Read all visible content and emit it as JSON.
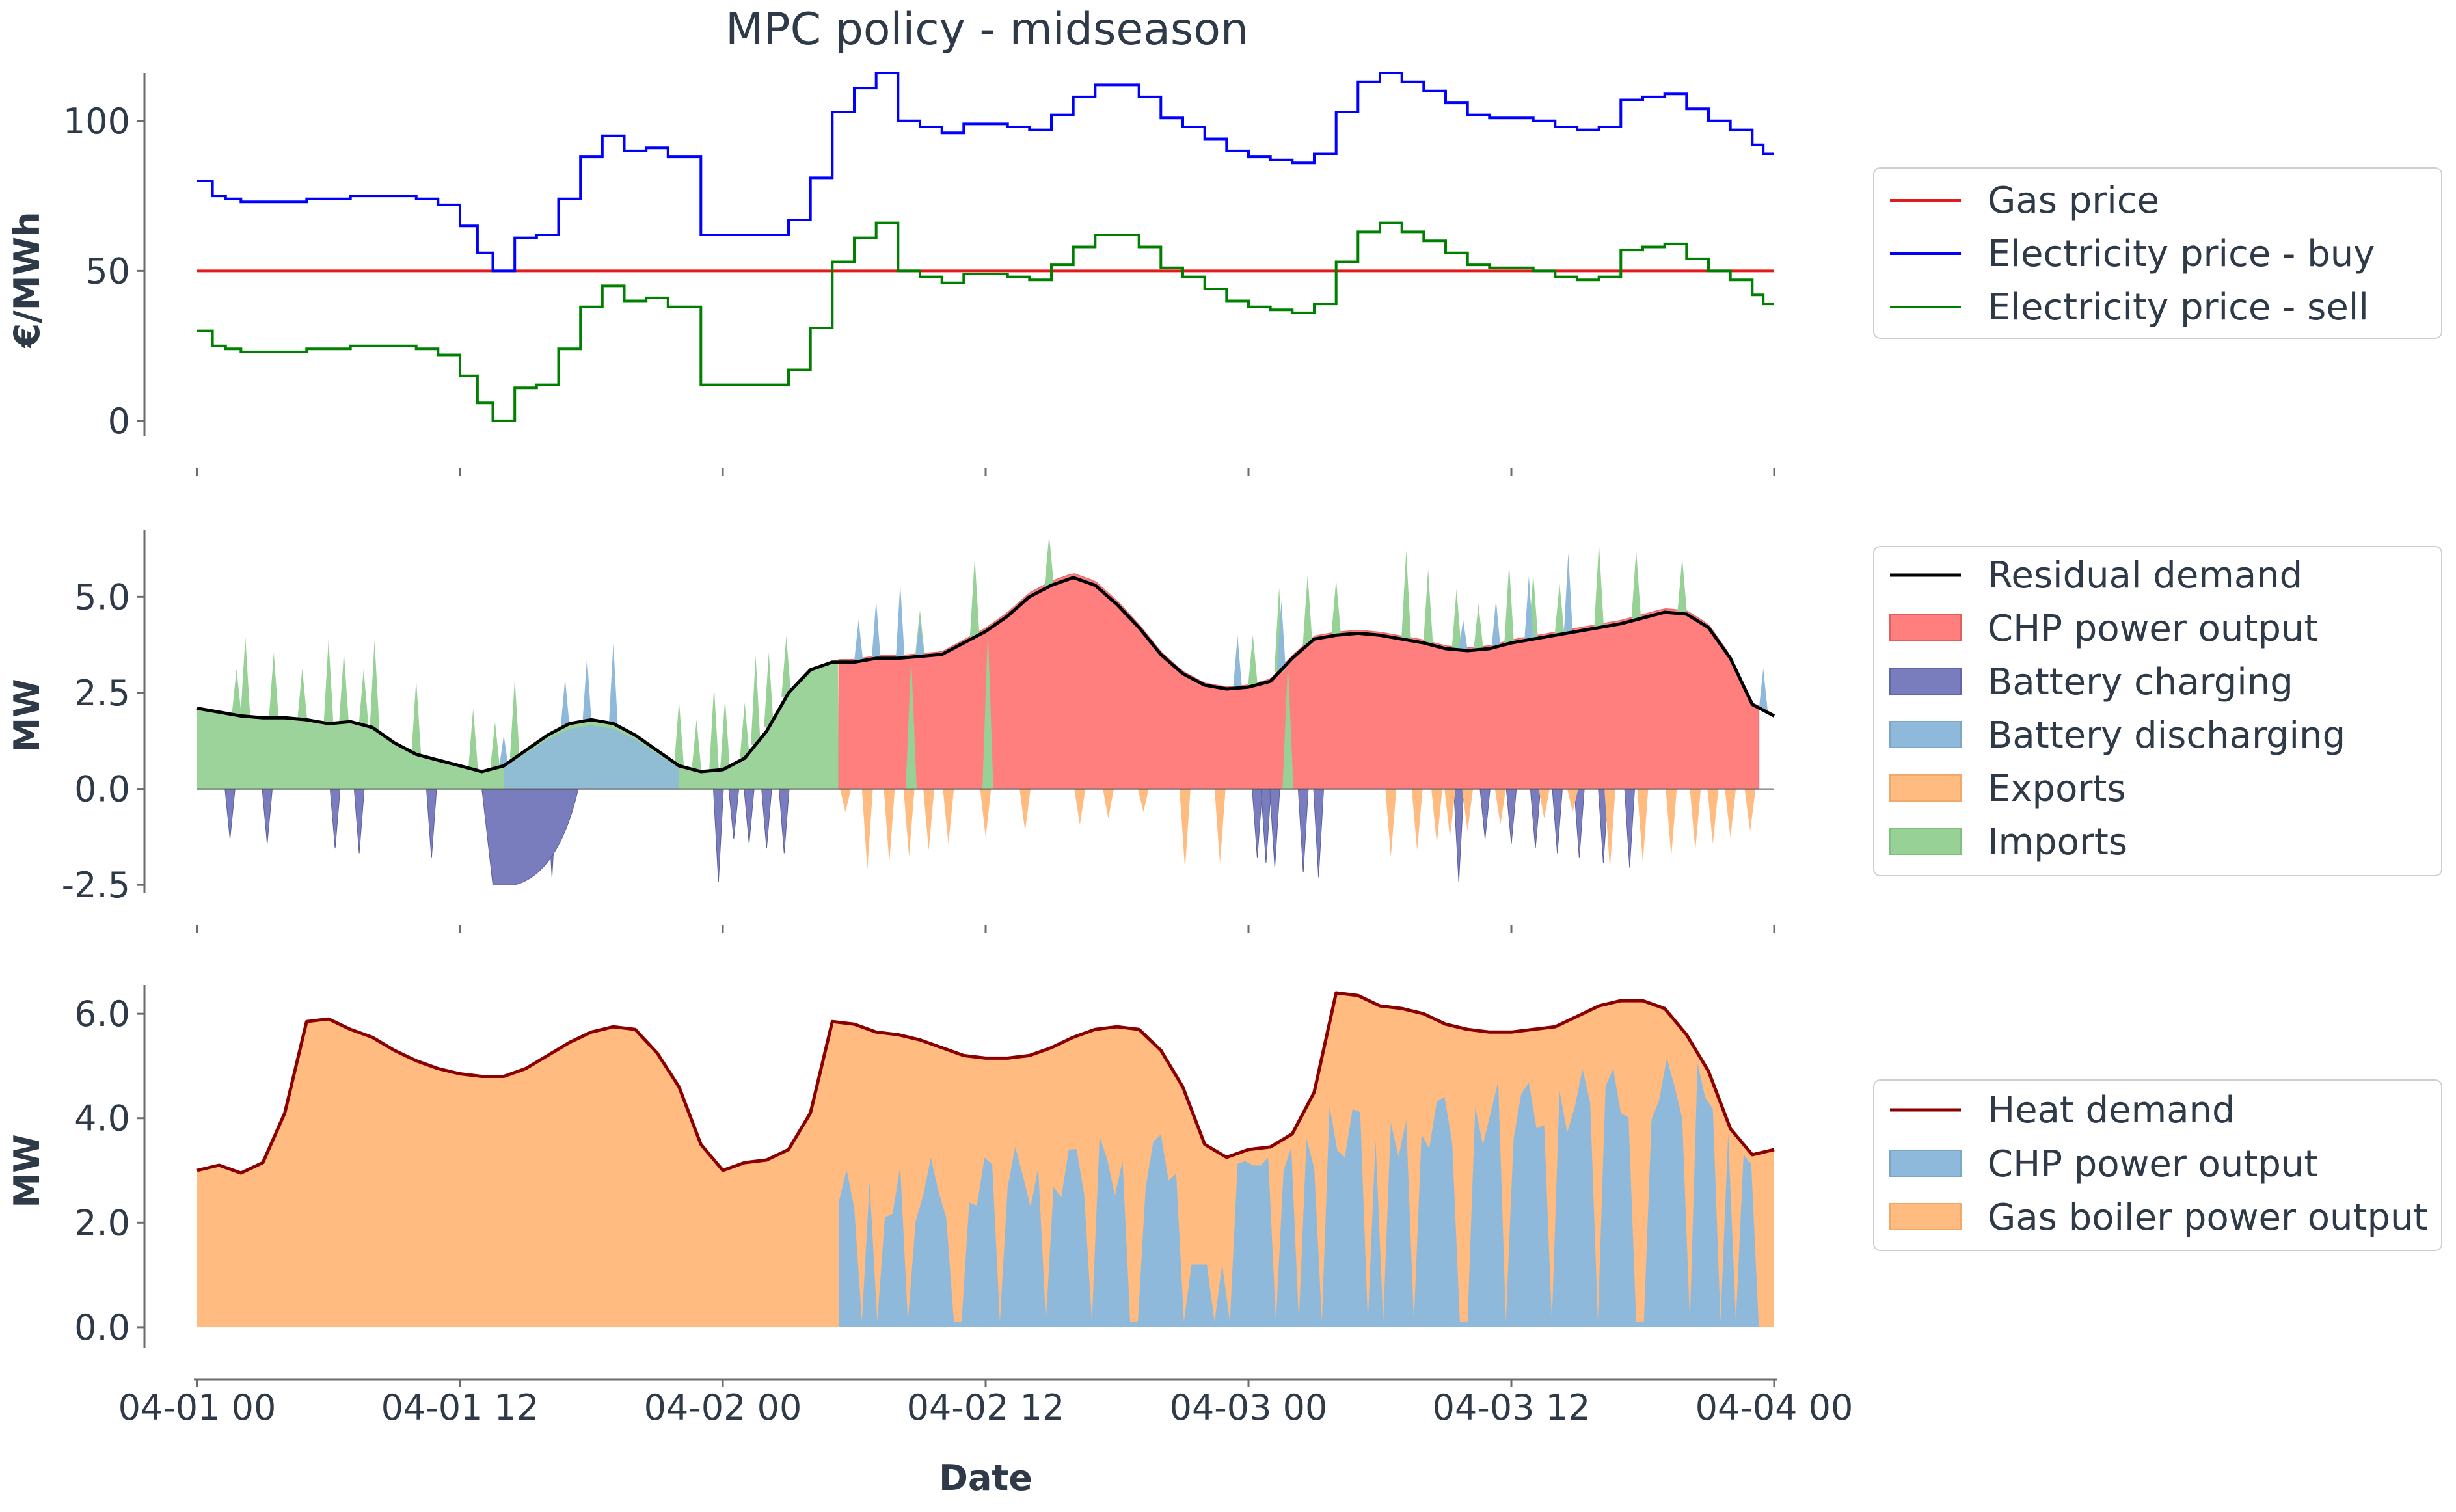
{
  "chart_data": {
    "title": "MPC policy - midseason",
    "xlabel": "Date",
    "x_ticks": [
      "04-01 00",
      "04-01 12",
      "04-02 00",
      "04-02 12",
      "04-03 00",
      "04-03 12",
      "04-04 00"
    ],
    "x_range_hours": [
      0,
      72
    ],
    "panels": [
      {
        "type": "line",
        "ylabel": "€/MWh",
        "ylim": [
          -5,
          116
        ],
        "y_ticks": [
          0,
          50,
          100
        ],
        "y_tick_labels": [
          "0",
          "50",
          "100"
        ],
        "legend": [
          "Gas price",
          "Electricity price - buy",
          "Electricity price - sell"
        ],
        "series": [
          {
            "name": "Gas price",
            "color": "#e31a1c",
            "style": "line",
            "x": [
              0,
              72
            ],
            "values": [
              50,
              50
            ]
          },
          {
            "name": "Electricity price - buy",
            "color": "#0000ff",
            "style": "step",
            "x": [
              0,
              0.7,
              1.3,
              2,
              3,
              4,
              5,
              6,
              7,
              8,
              9,
              10,
              11,
              12,
              12.8,
              13.5,
              14.5,
              15.5,
              16.5,
              17.5,
              18.5,
              19.5,
              20.5,
              21.5,
              23,
              24,
              25,
              26,
              27,
              28,
              29,
              30,
              31,
              32,
              33,
              34,
              35,
              36,
              37,
              38,
              39,
              40,
              41,
              42,
              43,
              44,
              45,
              46,
              47,
              48,
              49,
              50,
              51,
              52,
              53,
              54,
              55,
              56,
              57,
              58,
              59,
              60,
              61,
              62,
              63,
              64,
              65,
              66,
              67,
              68,
              69,
              70,
              71,
              71.5
            ],
            "values": [
              80,
              75,
              74,
              73,
              73,
              73,
              74,
              74,
              75,
              75,
              75,
              74,
              72,
              65,
              56,
              50,
              61,
              62,
              74,
              88,
              95,
              90,
              91,
              88,
              62,
              62,
              62,
              62,
              67,
              81,
              103,
              111,
              116,
              100,
              98,
              96,
              99,
              99,
              98,
              97,
              102,
              108,
              112,
              112,
              108,
              101,
              98,
              94,
              90,
              88,
              87,
              86,
              89,
              103,
              113,
              116,
              113,
              110,
              106,
              102,
              101,
              101,
              100,
              98,
              97,
              98,
              107,
              108,
              109,
              104,
              100,
              97,
              92,
              89
            ]
          },
          {
            "name": "Electricity price - sell",
            "color": "#008000",
            "style": "step",
            "x": [
              0,
              0.7,
              1.3,
              2,
              3,
              4,
              5,
              6,
              7,
              8,
              9,
              10,
              11,
              12,
              12.8,
              13.5,
              14.5,
              15.5,
              16.5,
              17.5,
              18.5,
              19.5,
              20.5,
              21.5,
              23,
              24,
              25,
              26,
              27,
              28,
              29,
              30,
              31,
              32,
              33,
              34,
              35,
              36,
              37,
              38,
              39,
              40,
              41,
              42,
              43,
              44,
              45,
              46,
              47,
              48,
              49,
              50,
              51,
              52,
              53,
              54,
              55,
              56,
              57,
              58,
              59,
              60,
              61,
              62,
              63,
              64,
              65,
              66,
              67,
              68,
              69,
              70,
              71,
              71.5
            ],
            "values": [
              30,
              25,
              24,
              23,
              23,
              23,
              24,
              24,
              25,
              25,
              25,
              24,
              22,
              15,
              6,
              0,
              11,
              12,
              24,
              38,
              45,
              40,
              41,
              38,
              12,
              12,
              12,
              12,
              17,
              31,
              53,
              61,
              66,
              50,
              48,
              46,
              49,
              49,
              48,
              47,
              52,
              58,
              62,
              62,
              58,
              51,
              48,
              44,
              40,
              38,
              37,
              36,
              39,
              53,
              63,
              66,
              63,
              60,
              56,
              52,
              51,
              51,
              50,
              48,
              47,
              48,
              57,
              58,
              59,
              54,
              50,
              47,
              42,
              39
            ]
          }
        ]
      },
      {
        "type": "area",
        "ylabel": "MW",
        "ylim": [
          -2.7,
          6.75
        ],
        "y_ticks": [
          -2.5,
          0,
          2.5,
          5
        ],
        "y_tick_labels": [
          "-2.5",
          "0.0",
          "2.5",
          "5.0"
        ],
        "legend": [
          "Residual demand",
          "CHP power output",
          "Battery charging",
          "Battery discharging",
          "Exports",
          "Imports"
        ],
        "residual_demand": {
          "name": "Residual demand",
          "color": "#000000",
          "x": [
            0,
            1,
            2,
            3,
            4,
            5,
            6,
            7,
            8,
            9,
            10,
            11,
            12,
            13,
            14,
            15,
            16,
            17,
            18,
            19,
            20,
            21,
            22,
            23,
            24,
            25,
            26,
            27,
            28,
            29,
            30,
            31,
            32,
            33,
            34,
            35,
            36,
            37,
            38,
            39,
            40,
            41,
            42,
            43,
            44,
            45,
            46,
            47,
            48,
            49,
            50,
            51,
            52,
            53,
            54,
            55,
            56,
            57,
            58,
            59,
            60,
            61,
            62,
            63,
            64,
            65,
            66,
            67,
            68,
            69,
            70,
            71,
            72
          ],
          "values": [
            2.1,
            2.0,
            1.9,
            1.85,
            1.85,
            1.8,
            1.7,
            1.75,
            1.6,
            1.2,
            0.9,
            0.75,
            0.6,
            0.45,
            0.6,
            1.0,
            1.4,
            1.7,
            1.8,
            1.7,
            1.4,
            1.0,
            0.6,
            0.45,
            0.5,
            0.8,
            1.5,
            2.5,
            3.1,
            3.3,
            3.3,
            3.4,
            3.4,
            3.45,
            3.5,
            3.8,
            4.1,
            4.5,
            5.0,
            5.3,
            5.5,
            5.3,
            4.8,
            4.2,
            3.5,
            3.0,
            2.7,
            2.6,
            2.65,
            2.8,
            3.4,
            3.9,
            4.0,
            4.05,
            4.0,
            3.9,
            3.8,
            3.65,
            3.6,
            3.65,
            3.8,
            3.9,
            4.0,
            4.1,
            4.2,
            4.3,
            4.45,
            4.6,
            4.55,
            4.2,
            3.4,
            2.2,
            1.9
          ]
        },
        "area_series": [
          {
            "name": "CHP power output",
            "color": "#ff7f7f",
            "x_start": 29.3,
            "x_end": 71.3,
            "note": "tracks residual demand while running, with short dips to zero"
          },
          {
            "name": "Battery charging",
            "color": "#7a7dbd",
            "negative": true,
            "spikes_x": [
              1.5,
              3.2,
              6.3,
              7.4,
              10.7,
              14.2,
              14.7,
              15.3,
              16.2,
              23.8,
              24.5,
              25.2,
              26,
              26.8,
              48.4,
              48.8,
              49.2,
              50.5,
              51.2,
              57.6,
              58.8,
              60.0,
              61.1,
              62.1,
              63.1,
              64.2,
              65.4
            ],
            "min_value": -2.5
          },
          {
            "name": "Battery discharging",
            "color": "#8fb9da",
            "spikes_x": [
              14.0,
              16.8,
              17.8,
              19.0,
              30.2,
              31.0,
              32.1,
              33.0,
              47.5,
              49.5,
              57.8,
              59.3,
              60.8,
              62.6,
              71.5
            ],
            "max_value": 6.5
          },
          {
            "name": "Exports",
            "color": "#ffbb80",
            "negative": true,
            "spikes_x": [
              29.6,
              30.6,
              31.6,
              32.5,
              33.4,
              34.3,
              36.0,
              37.8,
              40.3,
              41.6,
              43.2,
              45.1,
              46.7,
              54.5,
              55.7,
              56.6,
              57.2,
              58.0,
              59.5,
              61.5,
              62.8,
              64.5,
              66.0,
              67.3,
              68.4,
              69.2,
              70.0,
              70.9
            ],
            "min_value": -2.3
          },
          {
            "name": "Imports",
            "color": "#97d196",
            "spikes_x": [
              1.8,
              2.2,
              3.5,
              4.8,
              6.0,
              6.7,
              7.6,
              8.1,
              10.0,
              12.6,
              13.6,
              14.5,
              22.0,
              22.8,
              23.6,
              24.1,
              25.0,
              25.5,
              26.1,
              26.9,
              33.0,
              35.5,
              38.9,
              48.2,
              49.4,
              50.7,
              52.0,
              55.2,
              56.2,
              57.5,
              58.5,
              59.9,
              61.0,
              62.2,
              64.0,
              65.7,
              67.8
            ],
            "max_value": 6.6
          }
        ]
      },
      {
        "type": "area",
        "ylabel": "MW",
        "ylim": [
          -0.4,
          6.55
        ],
        "y_ticks": [
          0,
          2,
          4,
          6
        ],
        "y_tick_labels": [
          "0.0",
          "2.0",
          "4.0",
          "6.0"
        ],
        "legend": [
          "Heat demand",
          "CHP power output",
          "Gas boiler power output"
        ],
        "heat_demand": {
          "name": "Heat demand",
          "color": "#8b0000",
          "x": [
            0,
            1,
            2,
            3,
            4,
            5,
            6,
            7,
            8,
            9,
            10,
            11,
            12,
            13,
            14,
            15,
            16,
            17,
            18,
            19,
            20,
            21,
            22,
            23,
            24,
            25,
            26,
            27,
            28,
            29,
            30,
            31,
            32,
            33,
            34,
            35,
            36,
            37,
            38,
            39,
            40,
            41,
            42,
            43,
            44,
            45,
            46,
            47,
            48,
            49,
            50,
            51,
            52,
            53,
            54,
            55,
            56,
            57,
            58,
            59,
            60,
            61,
            62,
            63,
            64,
            65,
            66,
            67,
            68,
            69,
            70,
            71,
            72
          ],
          "values": [
            3.0,
            3.1,
            2.95,
            3.15,
            4.1,
            5.85,
            5.9,
            5.7,
            5.55,
            5.3,
            5.1,
            4.95,
            4.85,
            4.8,
            4.8,
            4.95,
            5.2,
            5.45,
            5.65,
            5.75,
            5.7,
            5.25,
            4.6,
            3.5,
            3.0,
            3.15,
            3.2,
            3.4,
            4.1,
            5.85,
            5.8,
            5.65,
            5.6,
            5.5,
            5.35,
            5.2,
            5.15,
            5.15,
            5.2,
            5.35,
            5.55,
            5.7,
            5.75,
            5.7,
            5.3,
            4.6,
            3.5,
            3.25,
            3.4,
            3.45,
            3.7,
            4.5,
            6.4,
            6.35,
            6.15,
            6.1,
            6.0,
            5.8,
            5.7,
            5.65,
            5.65,
            5.7,
            5.75,
            5.95,
            6.15,
            6.25,
            6.25,
            6.1,
            5.6,
            4.9,
            3.8,
            3.3,
            3.4
          ]
        },
        "area_series": [
          {
            "name": "CHP power output",
            "color": "#8fb9da",
            "x_start": 29.3,
            "x_end": 71.3,
            "note": "irregular, rising from about 2.5 MW to about 5 MW with frequent dips to zero"
          },
          {
            "name": "Gas boiler power output",
            "color": "#ffbb80",
            "note": "fills between CHP output and heat demand"
          }
        ]
      }
    ]
  }
}
